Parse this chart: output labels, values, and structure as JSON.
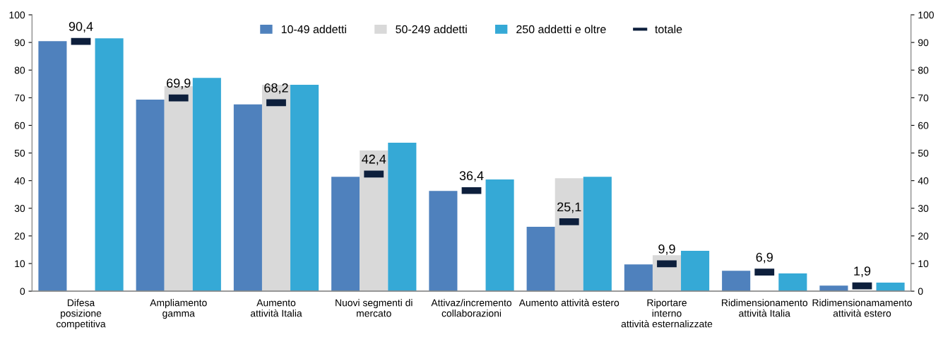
{
  "chart_data": {
    "type": "bar",
    "categories": [
      "Difesa\nposizione\ncompetitiva",
      "Ampliamento\ngamma",
      "Aumento\nattività Italia",
      "Nuovi segmenti di\nmercato",
      "Attivaz/incremento\ncollaborazioni",
      "Aumento attività estero",
      "Riportare\ninterno\nattività esternalizzate",
      "Ridimensionamento\nattività Italia",
      "Ridimensionamamento\nattività estero"
    ],
    "series": [
      {
        "name": "10-49 addetti",
        "color": "#4f81bd",
        "values": [
          90.5,
          69.3,
          67.6,
          41.4,
          36.3,
          23.3,
          9.7,
          7.4,
          2.0
        ]
      },
      {
        "name": "50-249 addetti",
        "color": "#d9d9d9",
        "values": [
          null,
          74.2,
          74.7,
          50.9,
          null,
          40.9,
          13.0,
          null,
          null
        ]
      },
      {
        "name": "250 addetti e oltre",
        "color": "#35a9d6",
        "values": [
          91.5,
          77.2,
          74.7,
          53.7,
          40.4,
          41.4,
          14.6,
          6.4,
          3.1
        ]
      },
      {
        "name": "totale",
        "type": "scatter",
        "color": "#0d1f3c",
        "x": [
          "Difesa\nposizione\ncompetitiva",
          "Ampliamento\ngamma",
          "Aumento\nattività Italia",
          "Nuovi segmenti di\nmercato",
          "Attivaz/incremento\ncollaborazioni",
          "Aumento attività estero",
          "Riportare\ninterno\nattività esternalizzate",
          "Ridimensionamento\nattività Italia",
          "Ridimensionamamento\nattività estero"
        ],
        "values": [
          90.4,
          69.9,
          68.2,
          42.4,
          36.4,
          25.1,
          9.9,
          6.9,
          1.9
        ],
        "value_labels": [
          "90,4",
          "69,9",
          "68,2",
          "42,4",
          "36,4",
          "25,1",
          "9,9",
          "6,9",
          "1,9"
        ]
      }
    ],
    "ylim": [
      0,
      100
    ],
    "yticks": [
      0,
      10,
      20,
      30,
      40,
      50,
      60,
      70,
      80,
      90,
      100
    ],
    "y2lim": [
      0,
      100
    ],
    "y2ticks": [
      0,
      10,
      20,
      30,
      40,
      50,
      60,
      70,
      80,
      90,
      100
    ],
    "grid": false,
    "legend": "top"
  }
}
